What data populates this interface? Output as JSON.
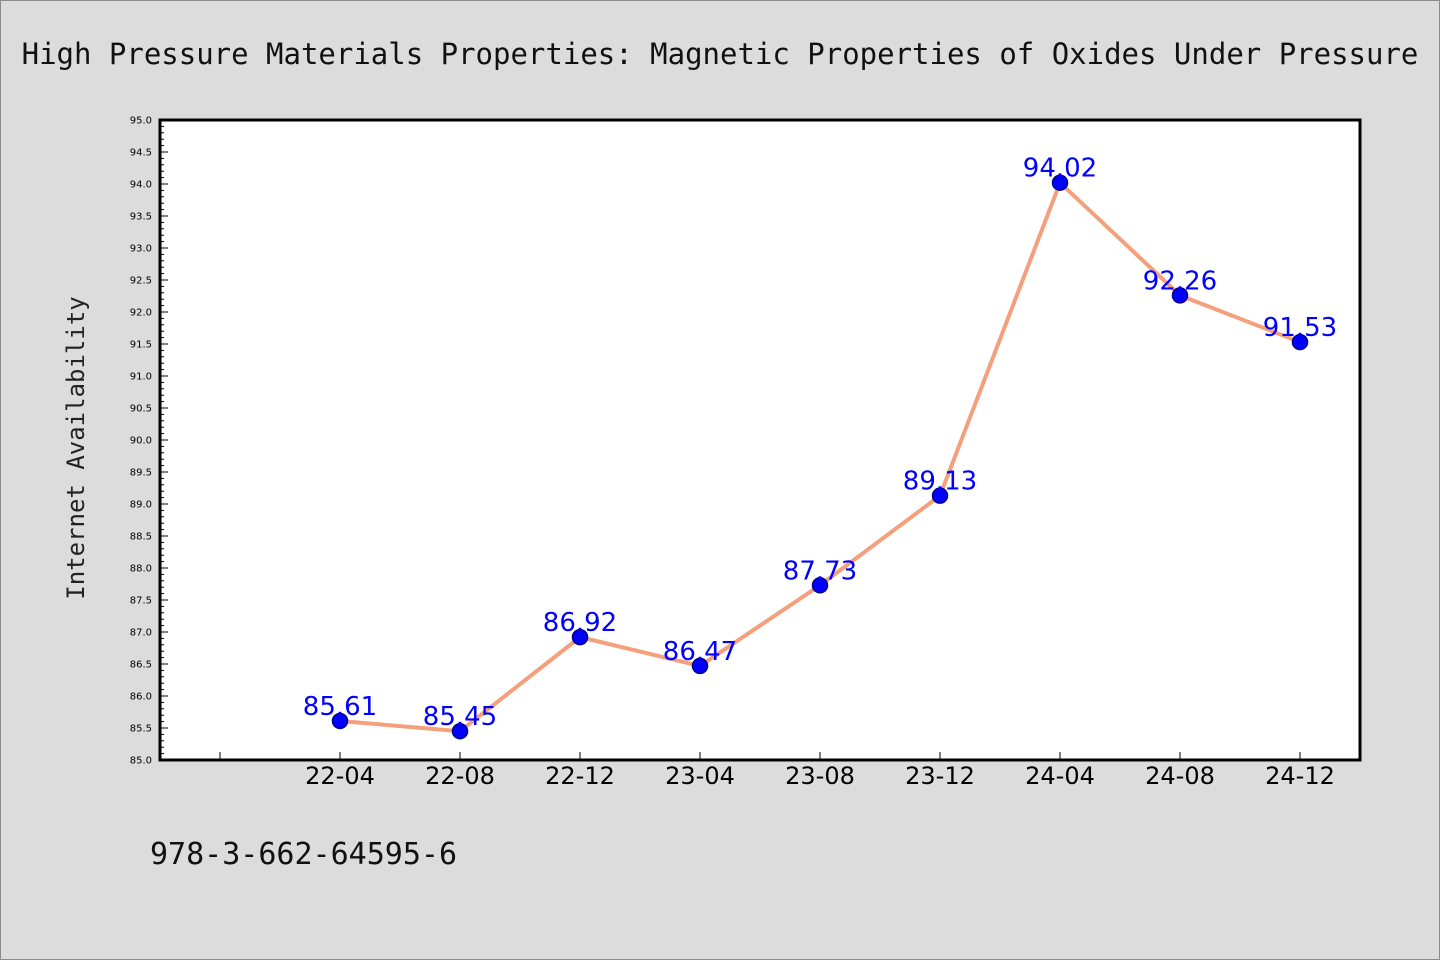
{
  "chart_data": {
    "type": "line",
    "title": "High Pressure Materials Properties: Magnetic Properties of Oxides Under Pressure",
    "xlabel": "",
    "ylabel": "Internet Availability",
    "categories": [
      "22-04",
      "22-08",
      "22-12",
      "23-04",
      "23-08",
      "23-12",
      "24-04",
      "24-08",
      "24-12"
    ],
    "values": [
      85.61,
      85.45,
      86.92,
      86.47,
      87.73,
      89.13,
      94.02,
      92.26,
      91.53
    ],
    "data_labels": [
      "85.61",
      "85.45",
      "86.92",
      "86.47",
      "87.73",
      "89.13",
      "94.02",
      "92.26",
      "91.53"
    ],
    "ylim": [
      85.0,
      95.0
    ],
    "ytick_step": 0.5,
    "grid": false,
    "legend": "none",
    "colors": {
      "line": "#f4a07c",
      "marker": "#0000ff",
      "marker_edge": "#00008b",
      "data_label": "#0000ff",
      "plot_background": "#ffffff",
      "page_background": "#dcdcdc"
    }
  },
  "footer": {
    "code": "978-3-662-64595-6"
  }
}
